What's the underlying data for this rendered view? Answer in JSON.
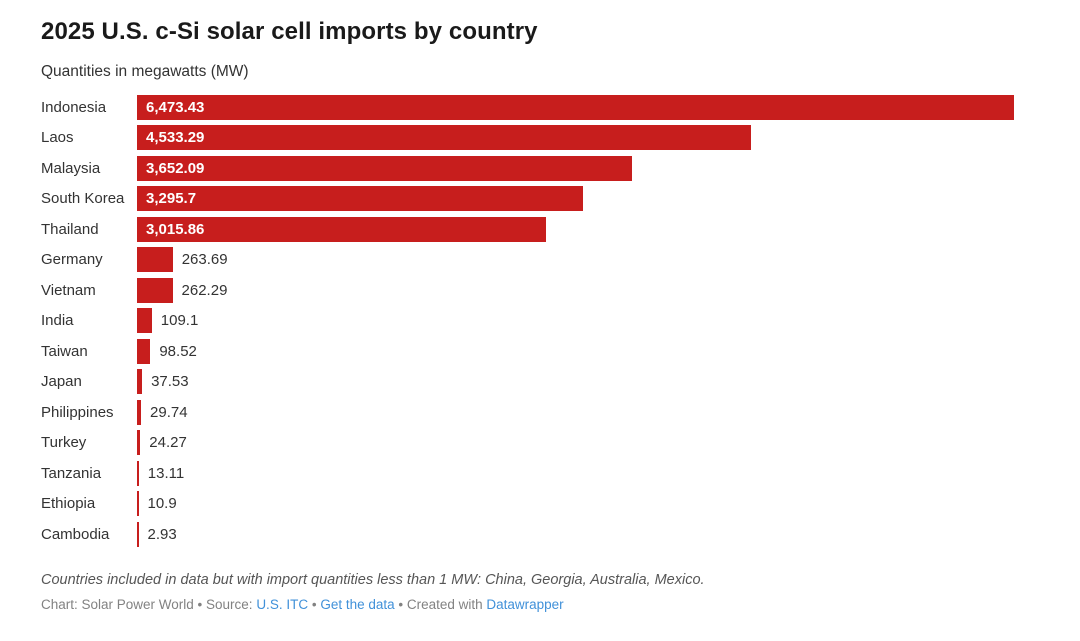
{
  "header": {
    "title": "2025 U.S. c-Si solar cell imports by country",
    "subtitle": "Quantities in megawatts (MW)"
  },
  "chart_data": {
    "type": "bar",
    "orientation": "horizontal",
    "title": "2025 U.S. c-Si solar cell imports by country",
    "subtitle": "Quantities in megawatts (MW)",
    "unit": "MW",
    "xlim": [
      0,
      6473.43
    ],
    "grid": false,
    "legend": "none",
    "bar_color": "#c71e1d",
    "inside_value_color": "#ffffff",
    "outside_value_color": "#333333",
    "categories": [
      "Indonesia",
      "Laos",
      "Malaysia",
      "South Korea",
      "Thailand",
      "Germany",
      "Vietnam",
      "India",
      "Taiwan",
      "Japan",
      "Philippines",
      "Turkey",
      "Tanzania",
      "Ethiopia",
      "Cambodia"
    ],
    "values": [
      6473.43,
      4533.29,
      3652.09,
      3295.7,
      3015.86,
      263.69,
      262.29,
      109.1,
      98.52,
      37.53,
      29.74,
      24.27,
      13.11,
      10.9,
      2.93
    ],
    "value_labels": [
      "6,473.43",
      "4,533.29",
      "3,652.09",
      "3,295.7",
      "3,015.86",
      "263.69",
      "262.29",
      "109.1",
      "98.52",
      "37.53",
      "29.74",
      "24.27",
      "13.11",
      "10.9",
      "2.93"
    ]
  },
  "footer": {
    "note": "Countries included in data but with import quantities less than 1 MW: China, Georgia, Australia, Mexico.",
    "link_color": "#4191d9",
    "attribution": [
      {
        "text": "Chart: Solar Power World • Source: ",
        "link": false
      },
      {
        "text": "U.S. ITC",
        "link": true
      },
      {
        "text": " • ",
        "link": false
      },
      {
        "text": "Get the data",
        "link": true
      },
      {
        "text": " • Created with ",
        "link": false
      },
      {
        "text": "Datawrapper",
        "link": true
      }
    ]
  }
}
